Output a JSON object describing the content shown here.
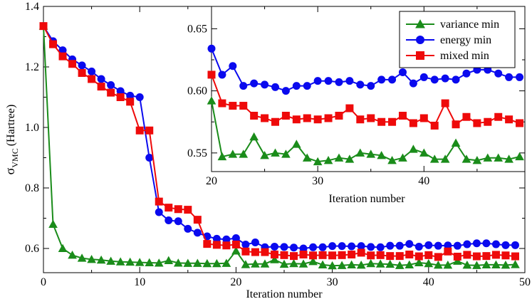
{
  "chart_data": [
    {
      "type": "line",
      "role": "main",
      "xlabel": "Iteration number",
      "ylabel_main": "σ",
      "ylabel_sub": "VMC",
      "ylabel_unit": "(Hartree)",
      "xlim": [
        0,
        50
      ],
      "ylim": [
        0.52,
        1.4
      ],
      "xticks": [
        0,
        10,
        20,
        30,
        40,
        50
      ],
      "yticks": [
        0.6,
        0.8,
        1.0,
        1.2,
        1.4
      ],
      "ytick_labels": [
        "0.6",
        "0.8",
        "1.0",
        "1.2",
        "1.4"
      ],
      "series": [
        {
          "name": "variance min",
          "color": "#1a8c1a",
          "marker": "triangle",
          "x": [
            0,
            1,
            2,
            3,
            4,
            5,
            6,
            7,
            8,
            9,
            10,
            11,
            12,
            13,
            14,
            15,
            16,
            17,
            18,
            19,
            20,
            21,
            22,
            23,
            24,
            25,
            26,
            27,
            28,
            29,
            30,
            31,
            32,
            33,
            34,
            35,
            36,
            37,
            38,
            39,
            40,
            41,
            42,
            43,
            44,
            45,
            46,
            47,
            48,
            49
          ],
          "y": [
            1.335,
            0.68,
            0.6,
            0.578,
            0.568,
            0.564,
            0.562,
            0.558,
            0.556,
            0.555,
            0.554,
            0.553,
            0.552,
            0.56,
            0.552,
            0.551,
            0.551,
            0.55,
            0.55,
            0.551,
            0.592,
            0.547,
            0.549,
            0.549,
            0.563,
            0.548,
            0.55,
            0.549,
            0.557,
            0.546,
            0.543,
            0.544,
            0.546,
            0.545,
            0.55,
            0.549,
            0.548,
            0.544,
            0.546,
            0.553,
            0.55,
            0.545,
            0.545,
            0.558,
            0.545,
            0.544,
            0.546,
            0.546,
            0.545,
            0.547
          ]
        },
        {
          "name": "energy min",
          "color": "#0a0aee",
          "marker": "circle",
          "x": [
            0,
            1,
            2,
            3,
            4,
            5,
            6,
            7,
            8,
            9,
            10,
            11,
            12,
            13,
            14,
            15,
            16,
            17,
            18,
            19,
            20,
            21,
            22,
            23,
            24,
            25,
            26,
            27,
            28,
            29,
            30,
            31,
            32,
            33,
            34,
            35,
            36,
            37,
            38,
            39,
            40,
            41,
            42,
            43,
            44,
            45,
            46,
            47,
            48,
            49
          ],
          "y": [
            1.335,
            1.285,
            1.255,
            1.225,
            1.205,
            1.185,
            1.16,
            1.14,
            1.12,
            1.105,
            1.1,
            0.9,
            0.72,
            0.693,
            0.69,
            0.665,
            0.652,
            0.64,
            0.632,
            0.63,
            0.634,
            0.613,
            0.62,
            0.604,
            0.606,
            0.605,
            0.603,
            0.6,
            0.604,
            0.604,
            0.608,
            0.608,
            0.607,
            0.608,
            0.605,
            0.604,
            0.609,
            0.609,
            0.615,
            0.606,
            0.611,
            0.609,
            0.61,
            0.609,
            0.614,
            0.617,
            0.617,
            0.614,
            0.611,
            0.611
          ]
        },
        {
          "name": "mixed min",
          "color": "#ee0a0a",
          "marker": "square",
          "x": [
            0,
            1,
            2,
            3,
            4,
            5,
            6,
            7,
            8,
            9,
            10,
            11,
            12,
            13,
            14,
            15,
            16,
            17,
            18,
            19,
            20,
            21,
            22,
            23,
            24,
            25,
            26,
            27,
            28,
            29,
            30,
            31,
            32,
            33,
            34,
            35,
            36,
            37,
            38,
            39,
            40,
            41,
            42,
            43,
            44,
            45,
            46,
            47,
            48,
            49
          ],
          "y": [
            1.335,
            1.275,
            1.235,
            1.21,
            1.18,
            1.16,
            1.135,
            1.115,
            1.1,
            1.085,
            0.99,
            0.99,
            0.755,
            0.735,
            0.73,
            0.728,
            0.695,
            0.615,
            0.612,
            0.61,
            0.613,
            0.59,
            0.588,
            0.588,
            0.58,
            0.578,
            0.575,
            0.58,
            0.577,
            0.578,
            0.577,
            0.578,
            0.58,
            0.586,
            0.577,
            0.578,
            0.575,
            0.575,
            0.58,
            0.574,
            0.578,
            0.572,
            0.59,
            0.573,
            0.579,
            0.574,
            0.575,
            0.579,
            0.577,
            0.574
          ]
        }
      ]
    },
    {
      "type": "line",
      "role": "inset",
      "xlabel": "Iteration number",
      "xlim": [
        20,
        49.5
      ],
      "ylim": [
        0.535,
        0.668
      ],
      "xticks": [
        20,
        30,
        40
      ],
      "yticks": [
        0.55,
        0.6,
        0.65
      ],
      "ytick_labels": [
        "0.55",
        "0.60",
        "0.65"
      ],
      "legend": {
        "placement": "top-right",
        "entries": [
          "variance min",
          "energy min",
          "mixed min"
        ]
      }
    }
  ]
}
